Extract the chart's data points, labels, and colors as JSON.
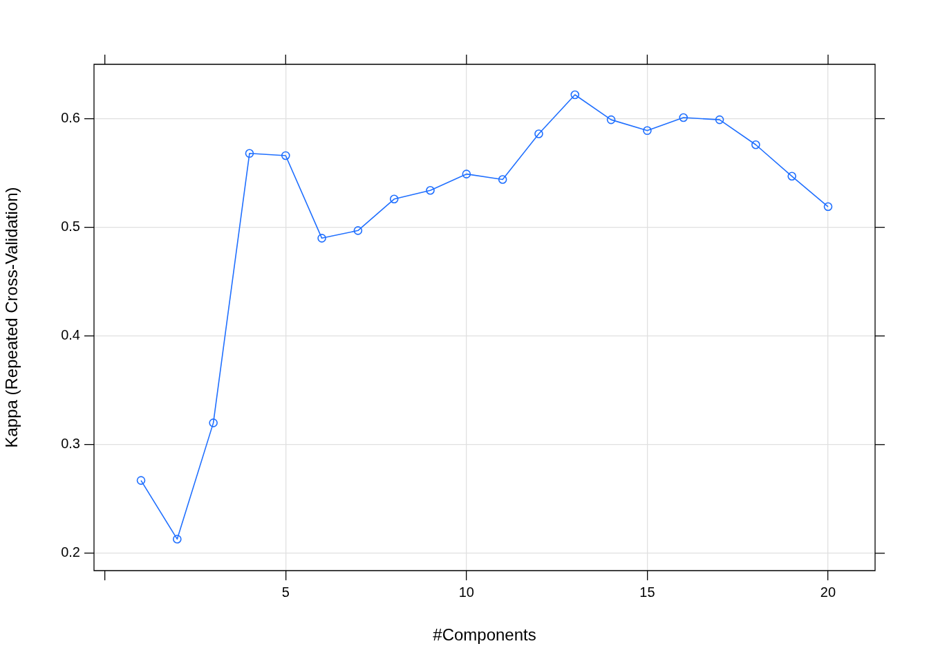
{
  "chart_data": {
    "type": "line",
    "xlabel": "#Components",
    "ylabel": "Kappa (Repeated Cross-Validation)",
    "x": [
      1,
      2,
      3,
      4,
      5,
      6,
      7,
      8,
      9,
      10,
      11,
      12,
      13,
      14,
      15,
      16,
      17,
      18,
      19,
      20
    ],
    "series": [
      {
        "color": "#1f6fff",
        "values": [
          0.267,
          0.213,
          0.32,
          0.568,
          0.566,
          0.49,
          0.497,
          0.526,
          0.534,
          0.549,
          0.544,
          0.586,
          0.622,
          0.599,
          0.589,
          0.601,
          0.599,
          0.576,
          0.547,
          0.519
        ]
      }
    ],
    "xlim": [
      -0.3,
      21.3
    ],
    "xticks": [
      {
        "value": 0,
        "label": null
      },
      5,
      10,
      15,
      20
    ],
    "ylim": [
      0.184,
      0.65
    ],
    "yticks": [
      0.2,
      0.3,
      0.4,
      0.5,
      0.6
    ],
    "grid": true,
    "legend": false,
    "marker": "circle",
    "line_style": "solid"
  }
}
